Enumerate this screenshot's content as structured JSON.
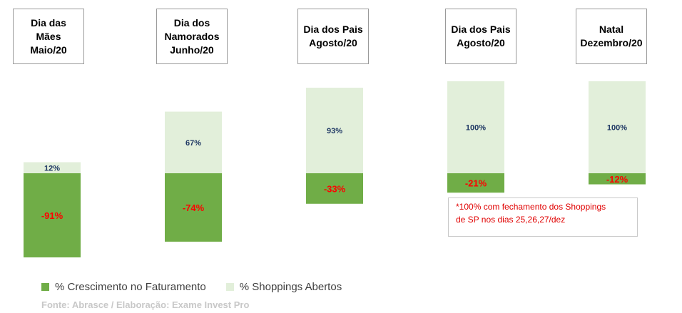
{
  "chart_data": {
    "type": "bar",
    "categories": [
      "Dia das\nMães\nMaio/20",
      "Dia dos\nNamorados\nJunho/20",
      "Dia dos Pais\nAgosto/20",
      "Dia dos Pais\nAgosto/20",
      "Natal\nDezembro/20"
    ],
    "series": [
      {
        "name": "% Crescimento no Faturamento",
        "values": [
          -91,
          -74,
          -33,
          -21,
          -12
        ],
        "labels": [
          "-91%",
          "-74%",
          "-33%",
          "-21%",
          "-12%"
        ]
      },
      {
        "name": "% Shoppings Abertos",
        "values": [
          12,
          67,
          93,
          100,
          100
        ],
        "labels": [
          "12%",
          "67%",
          "93%",
          "100%",
          "100%"
        ]
      }
    ],
    "colors": {
      "growth": "#70ad47",
      "open": "#e2efda",
      "growth_label": "#ff0000",
      "open_label": "#1f3864"
    },
    "annotation": "*100% com fechamento dos Shoppings\nde SP nos dias 25,26,27/dez",
    "source": "Fonte: Abrasce / Elaboração: Exame Invest Pro"
  }
}
